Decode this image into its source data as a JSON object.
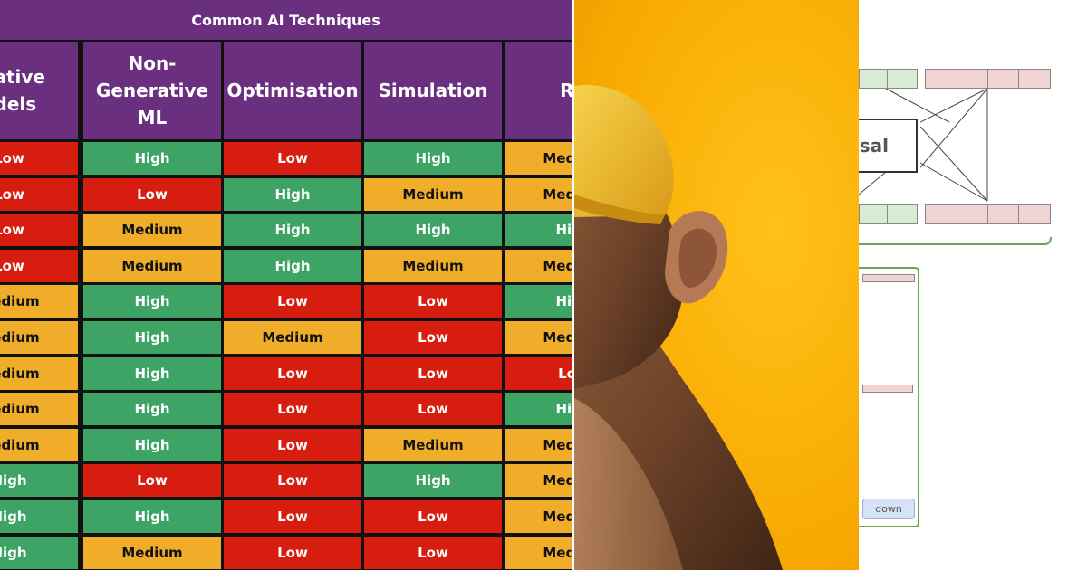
{
  "table": {
    "title": "Common AI Techniques",
    "columns": [
      "Generative Models",
      "Non-Generative ML",
      "Optimisation",
      "Simulation",
      "Rules"
    ],
    "visible_header_fragments": [
      "erative\nodels",
      "Non-\nGenerative\nML",
      "Optimisation",
      "Simulation",
      "Ru"
    ],
    "rows": [
      [
        "Low",
        "High",
        "Low",
        "High",
        "Medium"
      ],
      [
        "Low",
        "Low",
        "High",
        "Medium",
        "Medium"
      ],
      [
        "Low",
        "Medium",
        "High",
        "High",
        "High"
      ],
      [
        "Low",
        "Medium",
        "High",
        "Medium",
        "Medium"
      ],
      [
        "Medium",
        "High",
        "Low",
        "Low",
        "High"
      ],
      [
        "Medium",
        "High",
        "Medium",
        "Low",
        "Medium"
      ],
      [
        "Medium",
        "High",
        "Low",
        "Low",
        "Low"
      ],
      [
        "Medium",
        "High",
        "Low",
        "Low",
        "High"
      ],
      [
        "Medium",
        "High",
        "Low",
        "Medium",
        "Medium"
      ],
      [
        "High",
        "Low",
        "Low",
        "High",
        "Medium"
      ],
      [
        "High",
        "High",
        "Low",
        "Low",
        "Medium"
      ],
      [
        "High",
        "Medium",
        "Low",
        "Low",
        "Medium"
      ]
    ],
    "colors": {
      "High": "#3ea466",
      "Medium": "#f0ad2a",
      "Low": "#d71d10",
      "header": "#6a2f7e"
    }
  },
  "photo": {
    "subject": "monkey-wearing-yellow-cap",
    "background_color": "#f7a800",
    "cap_color": "#f2c12e"
  },
  "diagram": {
    "label_fragment": "sal",
    "button_fragment": "down",
    "colors": {
      "green_cell": "#d8ecd4",
      "pink_cell": "#f1d3d3",
      "frame": "#6aa84f"
    }
  }
}
